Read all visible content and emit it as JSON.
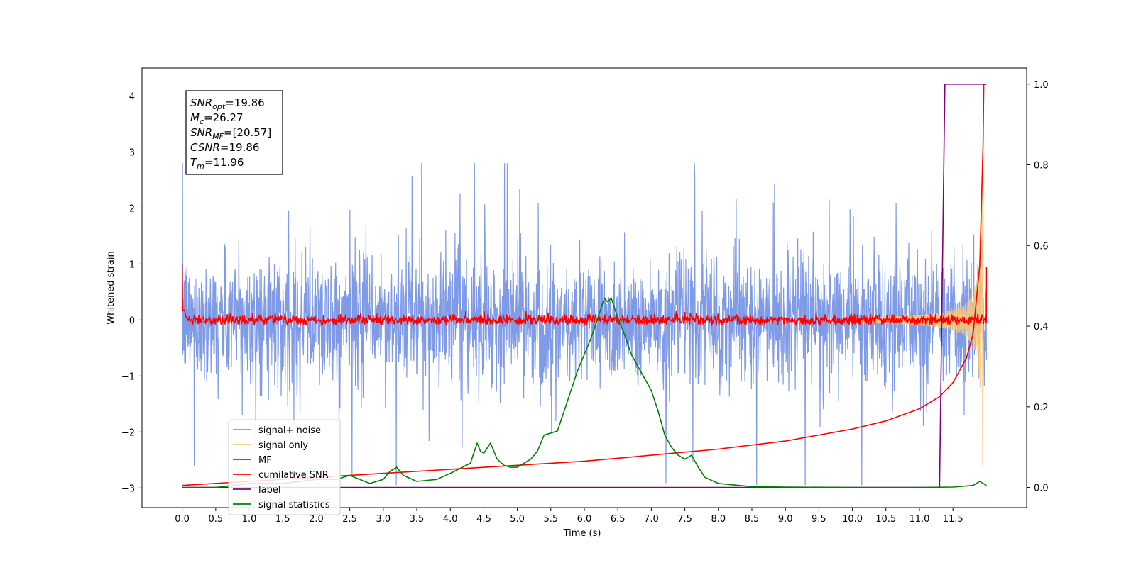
{
  "chart_data": {
    "type": "line",
    "xlabel": "Time (s)",
    "ylabel": "Whitened strain",
    "xlim": [
      -0.6,
      12.6
    ],
    "ylim": [
      -3.35,
      4.5
    ],
    "y2lim": [
      -0.05,
      1.04
    ],
    "xticks": [
      "0.0",
      "0.5",
      "1.0",
      "1.5",
      "2.0",
      "2.5",
      "3.0",
      "3.5",
      "4.0",
      "4.5",
      "5.0",
      "5.5",
      "6.0",
      "6.5",
      "7.0",
      "7.5",
      "8.0",
      "8.5",
      "9.0",
      "9.5",
      "10.0",
      "10.5",
      "11.0",
      "11.5"
    ],
    "yticks": [
      "−3",
      "−2",
      "−1",
      "0",
      "1",
      "2",
      "3",
      "4"
    ],
    "y2ticks": [
      "0.0",
      "0.2",
      "0.4",
      "0.6",
      "0.8",
      "1.0"
    ],
    "grid": false,
    "legend_position": "lower-left",
    "annotation": {
      "lines": [
        {
          "sym": "SNR",
          "sub": "opt",
          "value": "=19.86"
        },
        {
          "sym": "M",
          "sub": "c",
          "value": "=26.27"
        },
        {
          "sym": "SNR",
          "sub": "MF",
          "value": "=[20.57]"
        },
        {
          "sym": "CSNR",
          "sub": "",
          "value": "=19.86"
        },
        {
          "sym": "T",
          "sub": "m",
          "value": "=11.96"
        }
      ]
    },
    "series": [
      {
        "name": "signal+ noise",
        "color": "#7895e6",
        "axis": "left",
        "kind": "noise",
        "amplitude": 1.25,
        "t_range": [
          0,
          12
        ]
      },
      {
        "name": "signal only",
        "color": "#ffc870",
        "axis": "left",
        "kind": "chirp",
        "t_merge": 11.96
      },
      {
        "name": "MF",
        "color": "#ff0000",
        "axis": "left",
        "kind": "mf",
        "amplitude": 0.05,
        "start_value": 1.0
      },
      {
        "name": "cumilative SNR",
        "color": "#ff0000",
        "axis": "right",
        "x": [
          0.0,
          1.0,
          2.0,
          3.0,
          4.0,
          5.0,
          6.0,
          7.0,
          8.0,
          9.0,
          9.5,
          10.0,
          10.5,
          11.0,
          11.3,
          11.5,
          11.7,
          11.8,
          11.9,
          11.95,
          11.96,
          12.0
        ],
        "values": [
          0.005,
          0.015,
          0.025,
          0.035,
          0.045,
          0.055,
          0.065,
          0.08,
          0.095,
          0.115,
          0.13,
          0.145,
          0.165,
          0.195,
          0.225,
          0.26,
          0.32,
          0.38,
          0.55,
          0.85,
          1.0,
          1.0
        ]
      },
      {
        "name": "label",
        "color": "#800080",
        "axis": "right",
        "x": [
          0.0,
          11.3,
          11.38,
          11.96,
          12.0
        ],
        "values": [
          0.0,
          0.0,
          1.0,
          1.0,
          1.0
        ]
      },
      {
        "name": "signal statistics",
        "color": "#008000",
        "axis": "right",
        "x": [
          0.0,
          0.5,
          1.0,
          1.5,
          2.0,
          2.3,
          2.5,
          2.8,
          3.0,
          3.1,
          3.2,
          3.3,
          3.5,
          3.8,
          4.0,
          4.3,
          4.4,
          4.45,
          4.5,
          4.6,
          4.7,
          4.8,
          4.9,
          5.0,
          5.2,
          5.3,
          5.4,
          5.5,
          5.6,
          5.7,
          5.8,
          5.9,
          6.0,
          6.1,
          6.2,
          6.3,
          6.35,
          6.4,
          6.5,
          6.6,
          6.7,
          6.8,
          6.9,
          7.0,
          7.1,
          7.2,
          7.3,
          7.4,
          7.5,
          7.6,
          7.7,
          7.8,
          8.0,
          8.5,
          9.0,
          10.0,
          11.0,
          11.5,
          11.8,
          11.9,
          12.0
        ],
        "values": [
          0.0,
          0.0,
          0.01,
          0.01,
          0.02,
          0.02,
          0.03,
          0.01,
          0.02,
          0.04,
          0.05,
          0.03,
          0.015,
          0.02,
          0.035,
          0.06,
          0.11,
          0.09,
          0.085,
          0.11,
          0.07,
          0.055,
          0.05,
          0.05,
          0.07,
          0.09,
          0.13,
          0.135,
          0.14,
          0.19,
          0.24,
          0.29,
          0.33,
          0.37,
          0.42,
          0.47,
          0.46,
          0.47,
          0.42,
          0.38,
          0.33,
          0.3,
          0.27,
          0.24,
          0.19,
          0.13,
          0.1,
          0.08,
          0.07,
          0.08,
          0.05,
          0.025,
          0.01,
          0.002,
          0.001,
          0.0,
          0.0,
          0.001,
          0.005,
          0.015,
          0.005
        ]
      }
    ]
  }
}
